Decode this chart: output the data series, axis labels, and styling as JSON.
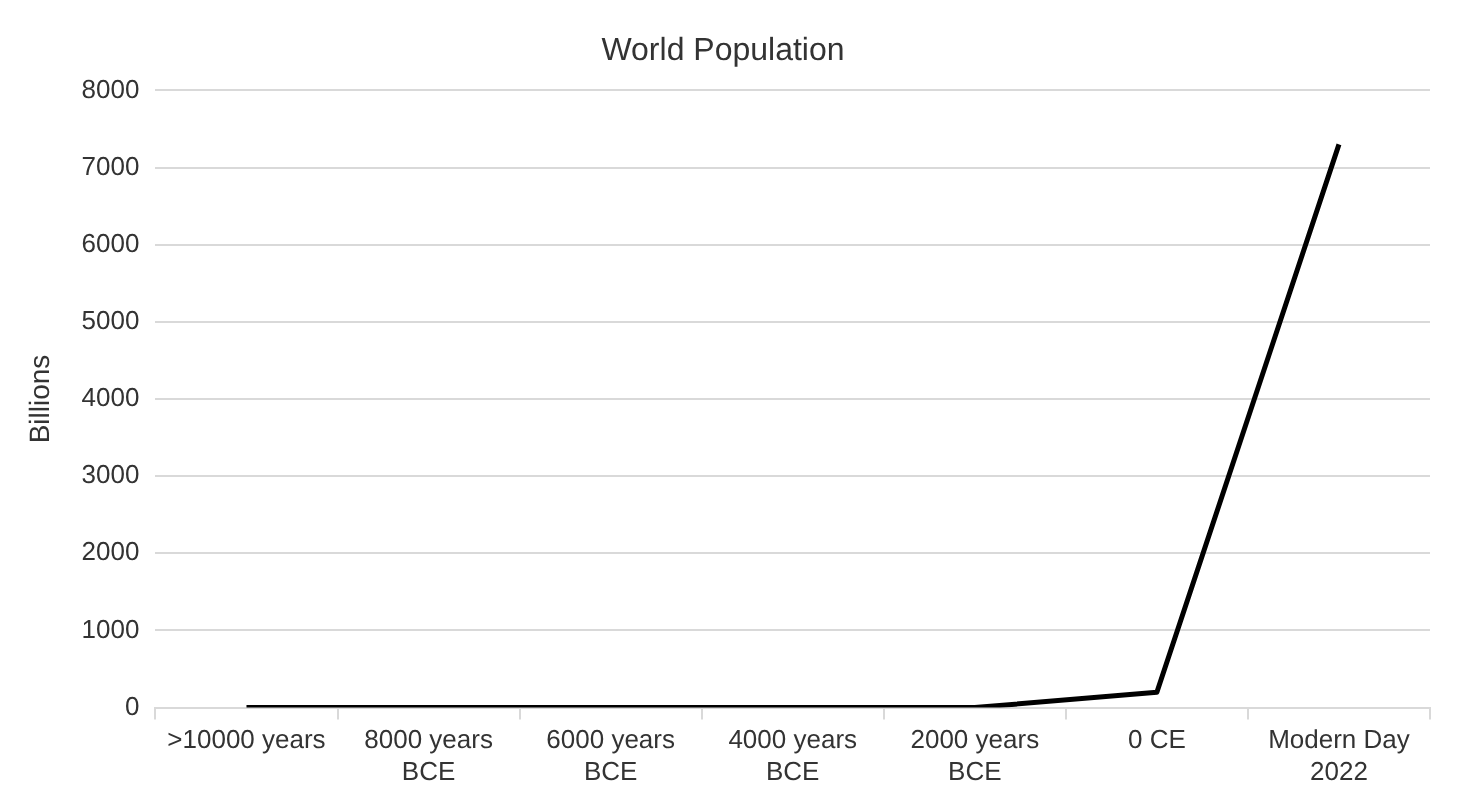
{
  "chart_data": {
    "type": "line",
    "title": "World Population",
    "ylabel": "Billions",
    "categories": [
      ">10000 years",
      "8000 years BCE",
      "6000 years BCE",
      "4000 years BCE",
      "2000 years BCE",
      "0 CE",
      "Modern Day 2022"
    ],
    "series": [
      {
        "color": "#000000",
        "values": [
          0,
          0,
          0,
          0,
          0,
          200,
          7300
        ]
      }
    ],
    "ylim": [
      0,
      8000
    ],
    "yticks": [
      0,
      1000,
      2000,
      3000,
      4000,
      5000,
      6000,
      7000,
      8000
    ],
    "grid": "y",
    "legend": false,
    "marker": "none",
    "line_style": "solid"
  }
}
